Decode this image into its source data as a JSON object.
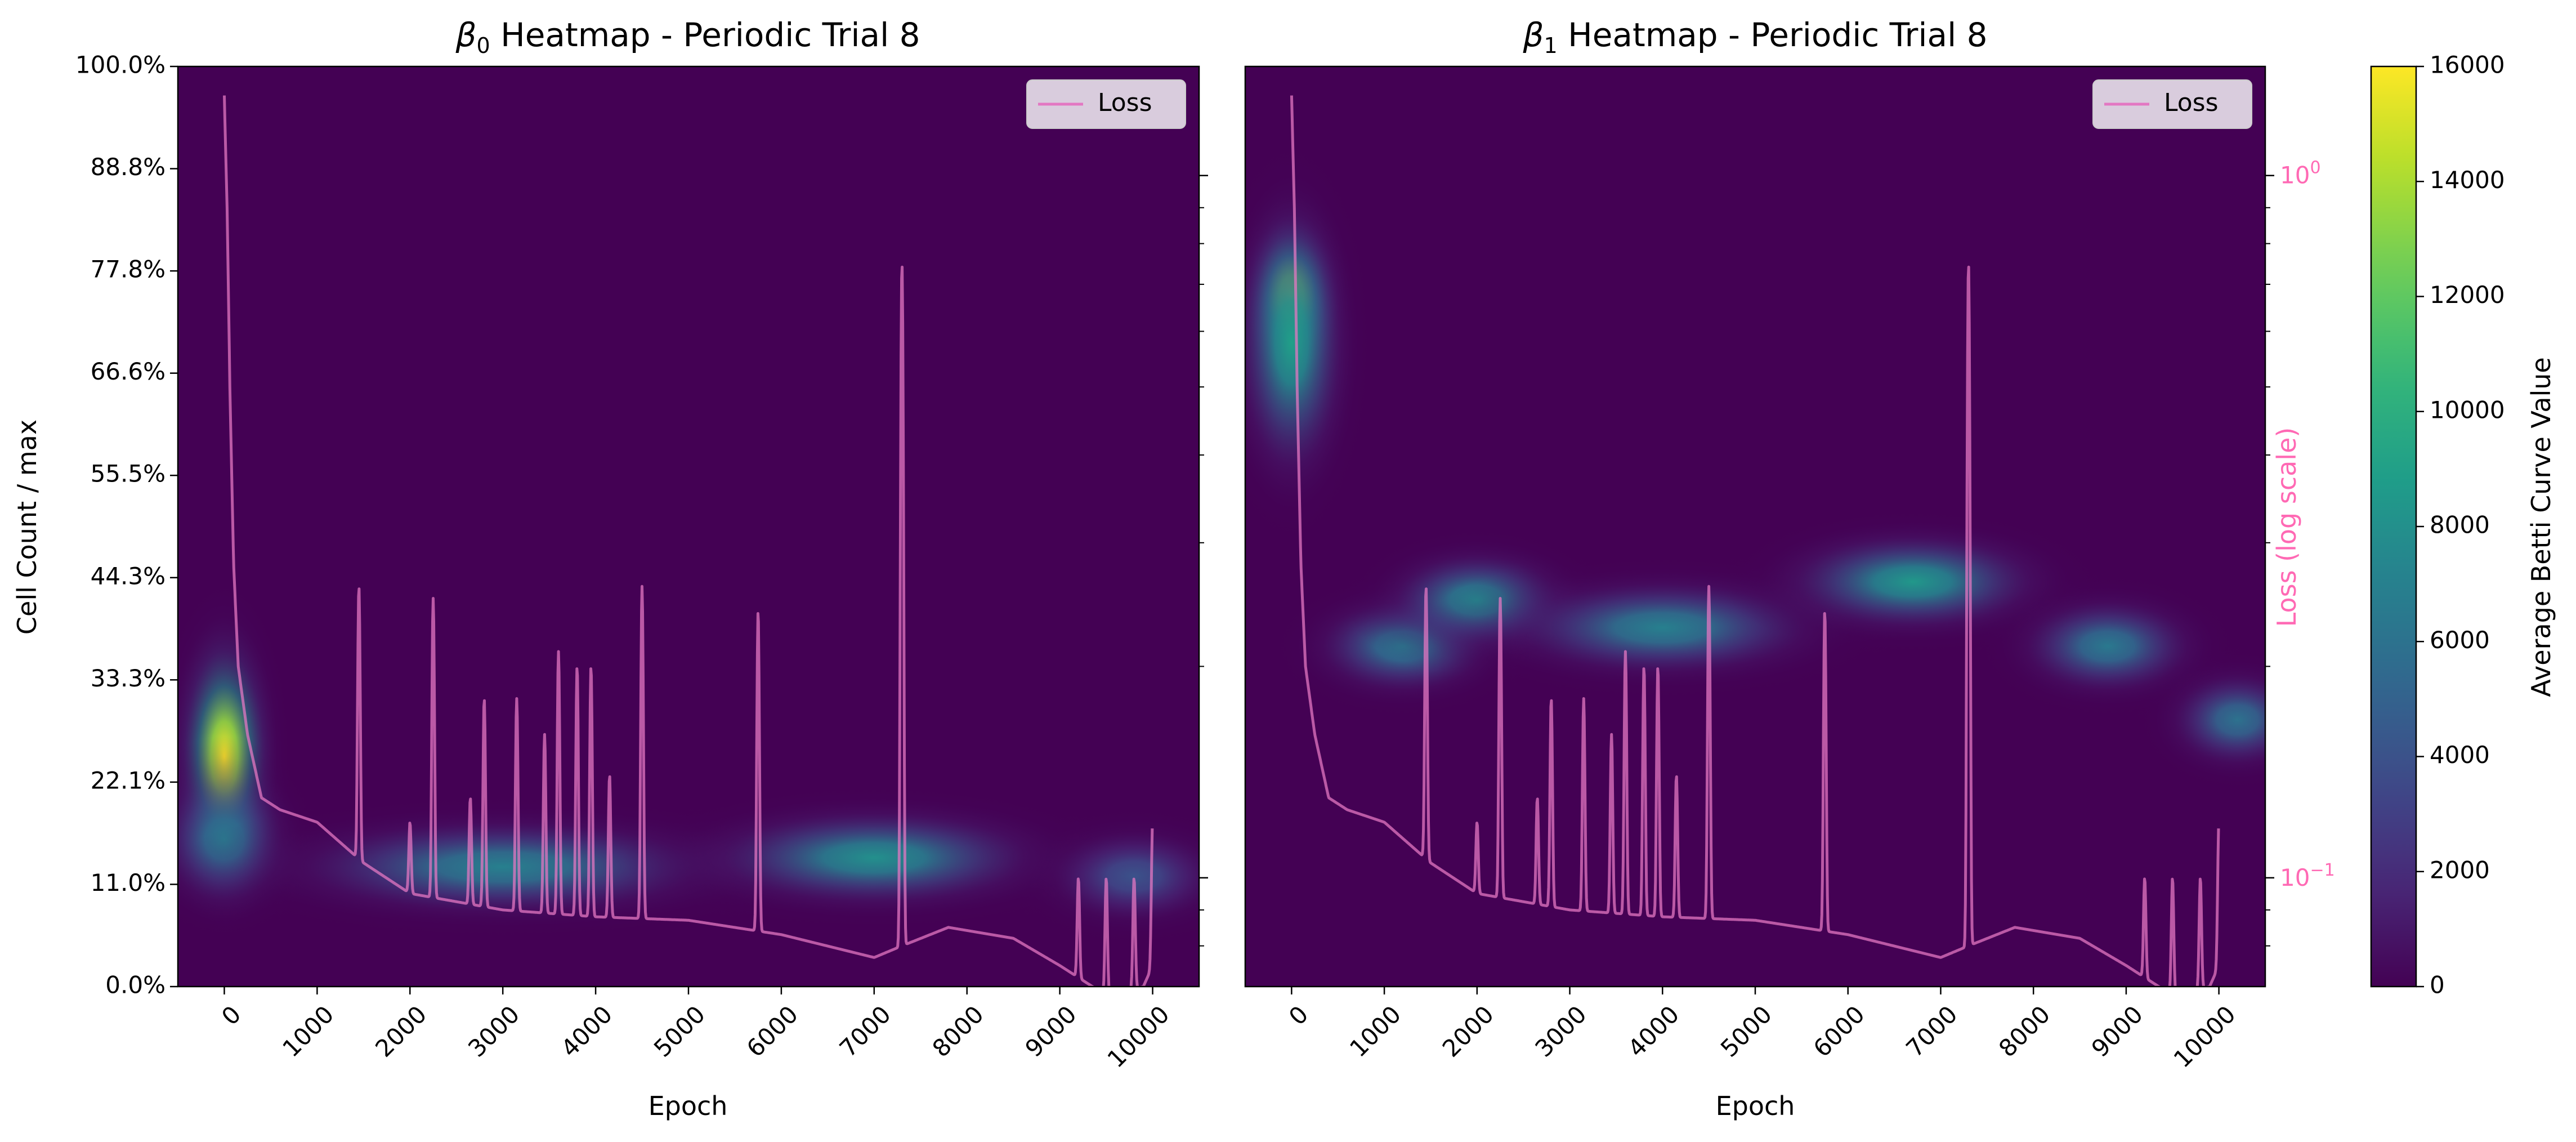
{
  "figure": {
    "colorbar": {
      "label": "Average Betti Curve Value",
      "min": 0,
      "max": 16000,
      "ticks": [
        0,
        2000,
        4000,
        6000,
        8000,
        10000,
        12000,
        14000,
        16000
      ],
      "colormap": "viridis"
    },
    "loss_line_color": "#e377c2",
    "loss_axis_color": "#ff69b4"
  },
  "chart_data": [
    {
      "type": "heatmap",
      "title_symbol": "β",
      "title_subscript": "0",
      "title_rest": " Heatmap - Periodic Trial 8",
      "xlabel": "Epoch",
      "ylabel": "Cell Count / max",
      "x_ticks": [
        0,
        1000,
        2000,
        3000,
        4000,
        5000,
        6000,
        7000,
        8000,
        9000,
        10000
      ],
      "xlim": [
        -500,
        10500
      ],
      "y_ticks": [
        "0.0%",
        "11.0%",
        "22.1%",
        "33.3%",
        "44.3%",
        "55.5%",
        "66.6%",
        "77.8%",
        "88.8%",
        "100.0%"
      ],
      "ylim": [
        0,
        100
      ],
      "legend": {
        "label": "Loss",
        "position": "top-right"
      },
      "heat_blobs": [
        {
          "epoch": 0,
          "epoch_spread": 450,
          "cell_pct": 25,
          "cell_spread": 12,
          "value": 16000
        },
        {
          "epoch": 0,
          "epoch_spread": 650,
          "cell_pct": 16,
          "cell_spread": 7,
          "value": 6500
        },
        {
          "epoch": 3000,
          "epoch_spread": 2200,
          "cell_pct": 13,
          "cell_spread": 5,
          "value": 7000
        },
        {
          "epoch": 7000,
          "epoch_spread": 1700,
          "cell_pct": 14,
          "cell_spread": 5,
          "value": 8000
        },
        {
          "epoch": 9800,
          "epoch_spread": 900,
          "cell_pct": 12,
          "cell_spread": 5,
          "value": 4000
        }
      ]
    },
    {
      "type": "heatmap",
      "title_symbol": "β",
      "title_subscript": "1",
      "title_rest": " Heatmap - Periodic Trial 8",
      "xlabel": "Epoch",
      "ylabel_right": "Loss (log scale)",
      "x_ticks": [
        0,
        1000,
        2000,
        3000,
        4000,
        5000,
        6000,
        7000,
        8000,
        9000,
        10000
      ],
      "xlim": [
        -500,
        10500
      ],
      "ylim": [
        0,
        100
      ],
      "loss_log_range": [
        0.07,
        1.43
      ],
      "loss_major_ticks": [
        {
          "base": "10",
          "exp": "0",
          "value": 1.0
        },
        {
          "base": "10",
          "exp": "−1",
          "value": 0.1
        }
      ],
      "loss_minor_ticks": [
        0.08,
        0.09,
        0.2,
        0.3,
        0.4,
        0.5,
        0.6,
        0.7,
        0.8,
        0.9
      ],
      "legend": {
        "label": "Loss",
        "position": "top-right"
      },
      "heat_blobs": [
        {
          "epoch": 0,
          "epoch_spread": 400,
          "cell_pct": 75,
          "cell_spread": 7,
          "value": 16000
        },
        {
          "epoch": 0,
          "epoch_spread": 550,
          "cell_pct": 70,
          "cell_spread": 14,
          "value": 9000
        },
        {
          "epoch": 1200,
          "epoch_spread": 900,
          "cell_pct": 37,
          "cell_spread": 5,
          "value": 6500
        },
        {
          "epoch": 2000,
          "epoch_spread": 900,
          "cell_pct": 42,
          "cell_spread": 5,
          "value": 7500
        },
        {
          "epoch": 4000,
          "epoch_spread": 1600,
          "cell_pct": 39,
          "cell_spread": 5,
          "value": 7000
        },
        {
          "epoch": 6700,
          "epoch_spread": 1300,
          "cell_pct": 44,
          "cell_spread": 5,
          "value": 8500
        },
        {
          "epoch": 8800,
          "epoch_spread": 900,
          "cell_pct": 37,
          "cell_spread": 5,
          "value": 6500
        },
        {
          "epoch": 10200,
          "epoch_spread": 700,
          "cell_pct": 29,
          "cell_spread": 5,
          "value": 6000
        }
      ]
    }
  ],
  "loss_curve": {
    "base": [
      [
        0,
        1.3
      ],
      [
        30,
        0.9
      ],
      [
        60,
        0.5
      ],
      [
        100,
        0.28
      ],
      [
        150,
        0.2
      ],
      [
        250,
        0.16
      ],
      [
        400,
        0.13
      ],
      [
        600,
        0.125
      ],
      [
        1000,
        0.12
      ],
      [
        1500,
        0.105
      ],
      [
        2000,
        0.095
      ],
      [
        3000,
        0.09
      ],
      [
        4000,
        0.088
      ],
      [
        5000,
        0.087
      ],
      [
        6000,
        0.083
      ],
      [
        7000,
        0.077
      ],
      [
        7300,
        0.08
      ],
      [
        7800,
        0.085
      ],
      [
        8500,
        0.082
      ],
      [
        9000,
        0.075
      ],
      [
        9500,
        0.068
      ],
      [
        9900,
        0.07
      ],
      [
        10000,
        0.075
      ]
    ],
    "spikes": [
      [
        1450,
        0.26
      ],
      [
        2000,
        0.12
      ],
      [
        2250,
        0.25
      ],
      [
        2650,
        0.13
      ],
      [
        2800,
        0.18
      ],
      [
        3150,
        0.18
      ],
      [
        3450,
        0.16
      ],
      [
        3600,
        0.21
      ],
      [
        3800,
        0.2
      ],
      [
        3950,
        0.2
      ],
      [
        4150,
        0.14
      ],
      [
        4500,
        0.26
      ],
      [
        5750,
        0.24
      ],
      [
        7300,
        0.75
      ],
      [
        9200,
        0.1
      ],
      [
        9500,
        0.1
      ],
      [
        9800,
        0.1
      ],
      [
        10000,
        0.12
      ]
    ]
  }
}
